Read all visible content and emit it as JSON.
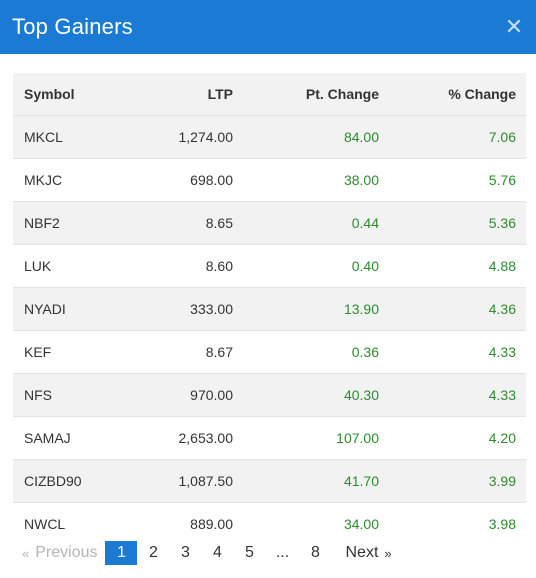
{
  "modal": {
    "title": "Top Gainers",
    "close_icon": "close-icon"
  },
  "table": {
    "headers": {
      "symbol": "Symbol",
      "ltp": "LTP",
      "pt_change": "Pt. Change",
      "pct_change": "% Change"
    },
    "rows": [
      {
        "symbol": "MKCL",
        "ltp": "1,274.00",
        "pt_change": "84.00",
        "pct_change": "7.06"
      },
      {
        "symbol": "MKJC",
        "ltp": "698.00",
        "pt_change": "38.00",
        "pct_change": "5.76"
      },
      {
        "symbol": "NBF2",
        "ltp": "8.65",
        "pt_change": "0.44",
        "pct_change": "5.36"
      },
      {
        "symbol": "LUK",
        "ltp": "8.60",
        "pt_change": "0.40",
        "pct_change": "4.88"
      },
      {
        "symbol": "NYADI",
        "ltp": "333.00",
        "pt_change": "13.90",
        "pct_change": "4.36"
      },
      {
        "symbol": "KEF",
        "ltp": "8.67",
        "pt_change": "0.36",
        "pct_change": "4.33"
      },
      {
        "symbol": "NFS",
        "ltp": "970.00",
        "pt_change": "40.30",
        "pct_change": "4.33"
      },
      {
        "symbol": "SAMAJ",
        "ltp": "2,653.00",
        "pt_change": "107.00",
        "pct_change": "4.20"
      },
      {
        "symbol": "CIZBD90",
        "ltp": "1,087.50",
        "pt_change": "41.70",
        "pct_change": "3.99"
      },
      {
        "symbol": "NWCL",
        "ltp": "889.00",
        "pt_change": "34.00",
        "pct_change": "3.98"
      }
    ]
  },
  "pagination": {
    "prev_icon": "«",
    "prev_label": "Previous",
    "pages": [
      "1",
      "2",
      "3",
      "4",
      "5"
    ],
    "ellipsis": "...",
    "last_page": "8",
    "next_label": "Next",
    "next_icon": "»",
    "current": "1"
  },
  "colors": {
    "header_bg": "#1a7ad4",
    "positive": "#2e8b2e",
    "row_stripe": "#f2f2f2"
  }
}
